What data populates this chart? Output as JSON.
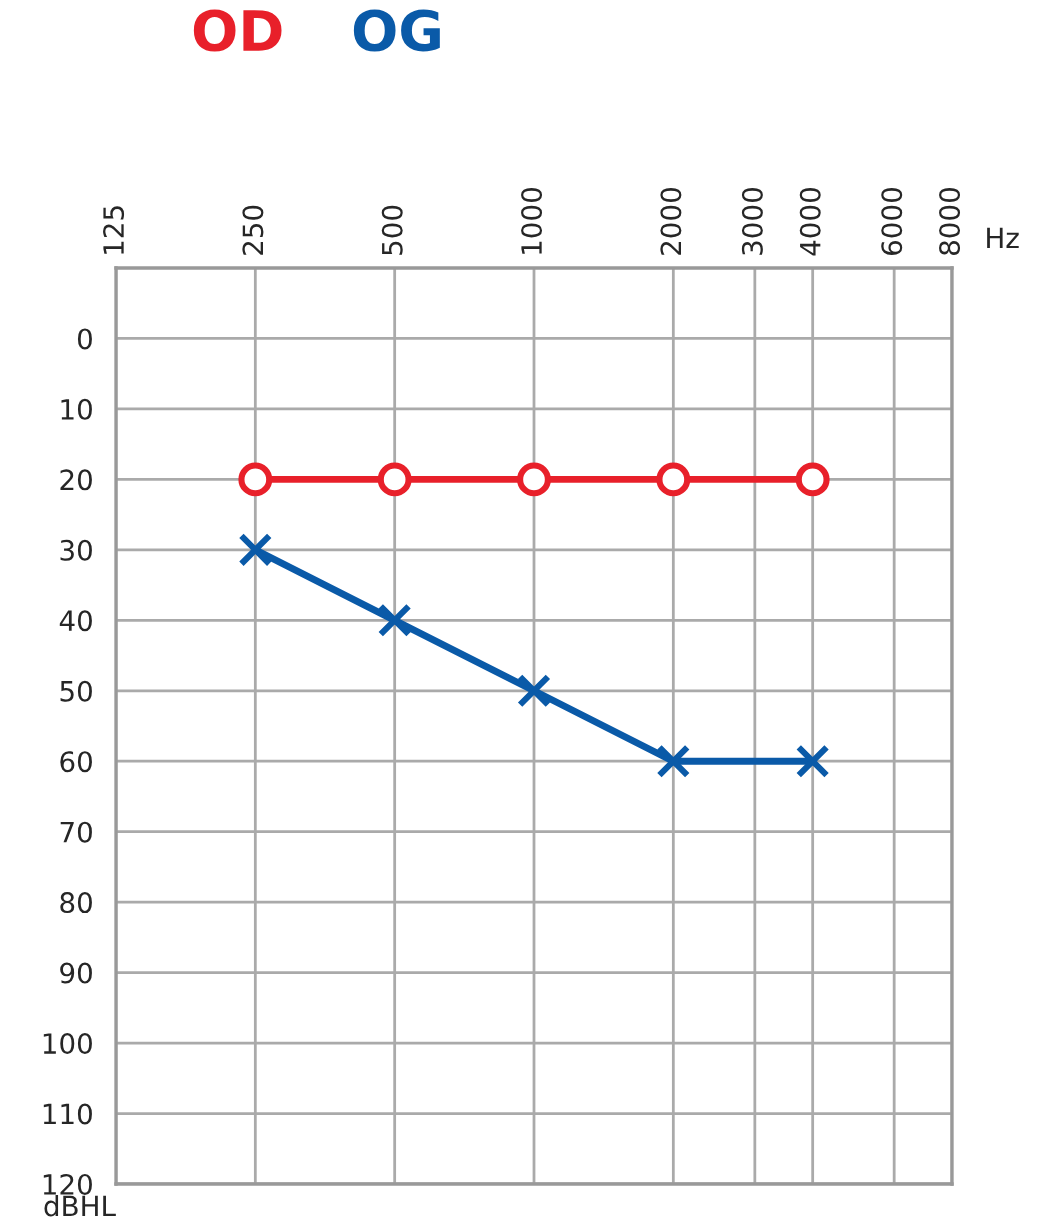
{
  "chart_data": {
    "type": "line",
    "x": [
      250,
      500,
      1000,
      2000,
      4000
    ],
    "series": [
      {
        "name": "OD",
        "color": "#e8202a",
        "values": [
          20,
          20,
          20,
          20,
          20
        ],
        "marker": "circle"
      },
      {
        "name": "OG",
        "color": "#0a5aa8",
        "values": [
          30,
          40,
          50,
          60,
          60
        ],
        "marker": "cross"
      }
    ],
    "xlabel": "Hz",
    "ylabel": "dBHL",
    "log": "x",
    "xlim": [
      125,
      8000
    ],
    "xticks": [
      125,
      250,
      500,
      1000,
      2000,
      3000,
      4000,
      6000,
      8000
    ],
    "ylim": [
      120,
      -10
    ],
    "yticks": [
      0,
      10,
      20,
      30,
      40,
      50,
      60,
      70,
      80,
      90,
      100,
      110,
      120
    ],
    "grid": true,
    "legend": "top left",
    "line_style": "solid"
  }
}
